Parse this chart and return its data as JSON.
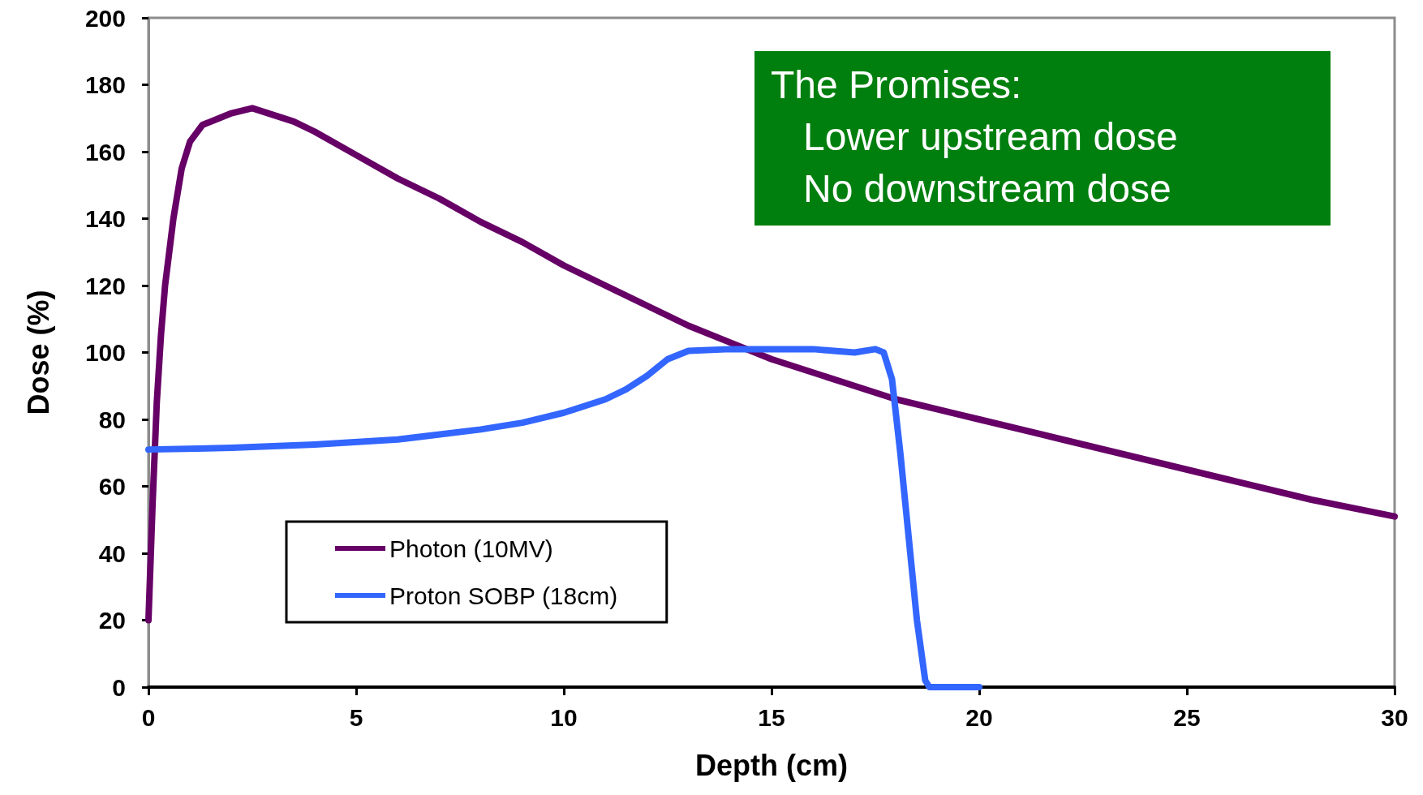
{
  "chart_data": {
    "type": "line",
    "xlabel": "Depth (cm)",
    "ylabel": "Dose (%)",
    "xlim": [
      0,
      30
    ],
    "xticks": [
      0,
      5,
      10,
      15,
      20,
      25,
      30
    ],
    "ylim": [
      0,
      200
    ],
    "yticks": [
      0,
      20,
      40,
      60,
      80,
      100,
      120,
      140,
      160,
      180,
      200
    ],
    "grid": false,
    "legend": "bottom left",
    "marker": "none",
    "line_style": "solid",
    "annotations": [
      "The Promises:\n   Lower upstream dose\n   No downstream dose"
    ],
    "series": [
      {
        "name": "Photon (10MV)",
        "color": "#660066",
        "x": [
          0,
          0.1,
          0.2,
          0.3,
          0.4,
          0.6,
          0.8,
          1.0,
          1.3,
          1.7,
          2,
          2.5,
          3,
          3.5,
          4,
          5,
          6,
          7,
          8,
          9,
          10,
          11,
          12,
          13,
          14,
          15,
          16,
          17,
          18,
          19,
          20,
          22,
          24,
          26,
          28,
          30
        ],
        "values": [
          20,
          55,
          85,
          105,
          120,
          140,
          155,
          163,
          168,
          170,
          171.5,
          173,
          171,
          169,
          166,
          159,
          152,
          146,
          139,
          133,
          126,
          120,
          114,
          108,
          103,
          98,
          94,
          90,
          86,
          83,
          80,
          74,
          68,
          62,
          56,
          51
        ]
      },
      {
        "name": "Proton SOBP (18cm)",
        "color": "#3366ff",
        "x": [
          0,
          2,
          4,
          6,
          8,
          9,
          10,
          11,
          11.5,
          12,
          12.5,
          13,
          14,
          15,
          16,
          16.5,
          17,
          17.5,
          17.7,
          17.9,
          18.1,
          18.3,
          18.5,
          18.7,
          18.8,
          20
        ],
        "values": [
          71,
          71.5,
          72.5,
          74,
          77,
          79,
          82,
          86,
          89,
          93,
          98,
          100.5,
          101,
          101,
          101,
          100.5,
          100,
          101,
          100,
          92,
          70,
          45,
          20,
          2,
          0,
          0
        ]
      }
    ]
  }
}
